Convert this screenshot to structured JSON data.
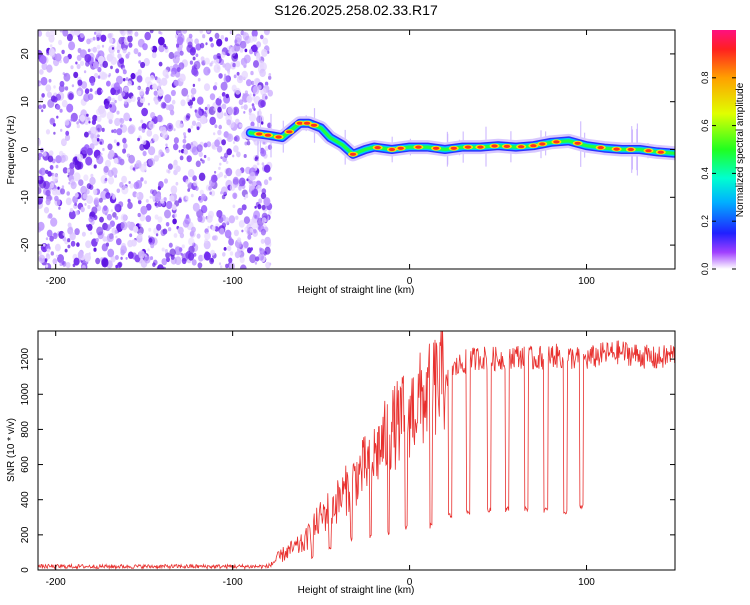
{
  "title": "S126.2025.258.02.33.R17",
  "chart_data": [
    {
      "type": "heatmap",
      "xlabel": "Height of straight line (km)",
      "ylabel": "Frequency (Hz)",
      "xlim": [
        -210,
        150
      ],
      "ylim": [
        -25,
        25
      ],
      "xticks": [
        -200,
        -100,
        0,
        100
      ],
      "yticks": [
        -20,
        -10,
        0,
        10,
        20
      ],
      "noise_region_x": [
        -210,
        -82
      ],
      "ridge_track": [
        {
          "x": -90,
          "y": 3.5
        },
        {
          "x": -80,
          "y": 3
        },
        {
          "x": -72,
          "y": 2.5
        },
        {
          "x": -67,
          "y": 4
        },
        {
          "x": -62,
          "y": 5.5
        },
        {
          "x": -57,
          "y": 5.5
        },
        {
          "x": -50,
          "y": 4.5
        },
        {
          "x": -45,
          "y": 2.5
        },
        {
          "x": -38,
          "y": 1
        },
        {
          "x": -32,
          "y": -1
        },
        {
          "x": -25,
          "y": 0
        },
        {
          "x": -20,
          "y": 0.5
        },
        {
          "x": -10,
          "y": 0
        },
        {
          "x": 0,
          "y": 0.5
        },
        {
          "x": 10,
          "y": 0.5
        },
        {
          "x": 20,
          "y": 0
        },
        {
          "x": 30,
          "y": 0.5
        },
        {
          "x": 40,
          "y": 0.5
        },
        {
          "x": 50,
          "y": 0.8
        },
        {
          "x": 60,
          "y": 0.5
        },
        {
          "x": 70,
          "y": 0.8
        },
        {
          "x": 80,
          "y": 1.5
        },
        {
          "x": 90,
          "y": 1.8
        },
        {
          "x": 100,
          "y": 0.8
        },
        {
          "x": 110,
          "y": 0.3
        },
        {
          "x": 120,
          "y": 0
        },
        {
          "x": 130,
          "y": 0
        },
        {
          "x": 140,
          "y": -0.5
        },
        {
          "x": 150,
          "y": -0.8
        }
      ],
      "hot_spots_x": [
        -85,
        -80,
        -74,
        -68,
        -62,
        -58,
        -54,
        -32,
        -18,
        -10,
        -5,
        5,
        15,
        25,
        33,
        40,
        48,
        55,
        63,
        70,
        75,
        83,
        95,
        108,
        117,
        125,
        135,
        142
      ],
      "colorbar": {
        "label": "Normalized spectral amplitude",
        "ticks": [
          0.0,
          0.2,
          0.4,
          0.6,
          0.8
        ],
        "range": [
          0,
          1
        ]
      }
    },
    {
      "type": "line",
      "xlabel": "Height of straight line (km)",
      "ylabel": "SNR (10 * v/v)",
      "xlim": [
        -210,
        150
      ],
      "ylim": [
        0,
        1360
      ],
      "xticks": [
        -200,
        -100,
        0,
        100
      ],
      "yticks": [
        0,
        200,
        400,
        600,
        800,
        1000,
        1200
      ],
      "series": [
        {
          "name": "SNR",
          "color": "#e8302e",
          "envelope": [
            {
              "x": -210,
              "y": 20
            },
            {
              "x": -80,
              "y": 20
            },
            {
              "x": -70,
              "y": 100
            },
            {
              "x": -60,
              "y": 150
            },
            {
              "x": -50,
              "y": 300
            },
            {
              "x": -40,
              "y": 400
            },
            {
              "x": -30,
              "y": 530
            },
            {
              "x": -20,
              "y": 650
            },
            {
              "x": -10,
              "y": 800
            },
            {
              "x": 0,
              "y": 900
            },
            {
              "x": 10,
              "y": 1000
            },
            {
              "x": 20,
              "y": 1100
            },
            {
              "x": 30,
              "y": 1180
            },
            {
              "x": 40,
              "y": 1210
            },
            {
              "x": 50,
              "y": 1200
            },
            {
              "x": 60,
              "y": 1220
            },
            {
              "x": 70,
              "y": 1200
            },
            {
              "x": 80,
              "y": 1220
            },
            {
              "x": 90,
              "y": 1210
            },
            {
              "x": 100,
              "y": 1200
            },
            {
              "x": 110,
              "y": 1230
            },
            {
              "x": 120,
              "y": 1240
            },
            {
              "x": 130,
              "y": 1220
            },
            {
              "x": 140,
              "y": 1200
            },
            {
              "x": 150,
              "y": 1230
            }
          ],
          "dropouts": [
            {
              "x": -55,
              "y": 80
            },
            {
              "x": -45,
              "y": 120
            },
            {
              "x": -33,
              "y": 180
            },
            {
              "x": -22,
              "y": 190
            },
            {
              "x": -12,
              "y": 210
            },
            {
              "x": -2,
              "y": 240
            },
            {
              "x": 12,
              "y": 250
            },
            {
              "x": 23,
              "y": 310
            },
            {
              "x": 33,
              "y": 330
            },
            {
              "x": 45,
              "y": 340
            },
            {
              "x": 55,
              "y": 345
            },
            {
              "x": 66,
              "y": 350
            },
            {
              "x": 77,
              "y": 340
            },
            {
              "x": 88,
              "y": 330
            },
            {
              "x": 97,
              "y": 360
            }
          ]
        }
      ]
    }
  ]
}
